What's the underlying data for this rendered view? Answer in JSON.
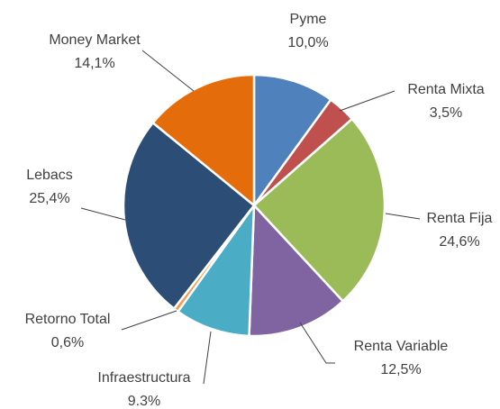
{
  "chart_data": {
    "type": "pie",
    "categories": [
      "Pyme",
      "Renta Mixta",
      "Renta Fija",
      "Renta Variable",
      "Infraestructura",
      "Retorno Total",
      "Lebacs",
      "Money Market"
    ],
    "values": [
      10.0,
      3.5,
      24.6,
      12.5,
      9.3,
      0.6,
      25.4,
      14.1
    ],
    "value_labels": [
      "10,0%",
      "3,5%",
      "24,6%",
      "12,5%",
      "9.3%",
      "0,6%",
      "25,4%",
      "14,1%"
    ],
    "colors": [
      "#4f81bd",
      "#c0504d",
      "#9bbb59",
      "#8064a2",
      "#4bacc6",
      "#f79646",
      "#2c4d75",
      "#e46c0a"
    ]
  }
}
